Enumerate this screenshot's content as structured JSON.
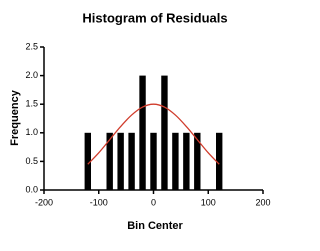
{
  "chart_data": {
    "type": "bar",
    "title": "Histogram of Residuals",
    "x_label": "Bin Center",
    "y_label": "Frequency",
    "x": [
      -120,
      -80,
      -60,
      -40,
      -20,
      0,
      20,
      40,
      60,
      80,
      120
    ],
    "values": [
      1,
      1,
      1,
      1,
      2,
      1,
      2,
      1,
      1,
      1,
      1
    ],
    "color": "#000000",
    "curve": {
      "x": [
        -120,
        -100,
        -80,
        -60,
        -40,
        -20,
        0,
        20,
        40,
        60,
        80,
        100,
        120
      ],
      "values": [
        0.45,
        0.65,
        0.88,
        1.11,
        1.31,
        1.45,
        1.5,
        1.45,
        1.31,
        1.11,
        0.88,
        0.65,
        0.45
      ],
      "color": "#d03c2c"
    },
    "xlim": [
      -200,
      200
    ],
    "xticks": [
      -200,
      -100,
      0,
      100,
      200
    ],
    "ylim": [
      0,
      2.5
    ],
    "yticks": [
      {
        "value": 0,
        "label": "0.0"
      },
      {
        "value": 0.5,
        "label": "0.5"
      },
      {
        "value": 1,
        "label": "1.0"
      },
      {
        "value": 1.5,
        "label": "1.5"
      },
      {
        "value": 2,
        "label": "2.0"
      },
      {
        "value": 2.5,
        "label": "2.5"
      }
    ]
  }
}
